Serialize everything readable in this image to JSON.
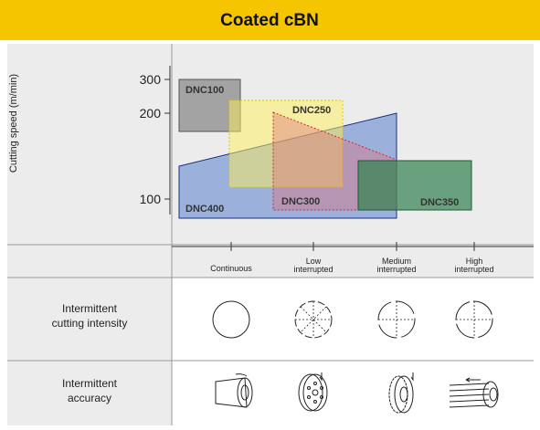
{
  "header": {
    "title": "Coated cBN"
  },
  "speed_chart": {
    "axis_label": "Cutting speed (m/min)",
    "ticks": [
      "300",
      "200",
      "100"
    ],
    "regions": [
      "DNC100",
      "DNC250",
      "DNC300",
      "DNC400",
      "DNC350"
    ]
  },
  "interruption_axis": {
    "labels": [
      [
        "Continuous"
      ],
      [
        "Low",
        "interrupted"
      ],
      [
        "Medium",
        "interrupted"
      ],
      [
        "High",
        "interrupted"
      ]
    ]
  },
  "rows": [
    {
      "label": [
        "Intermittent",
        "cutting intensity"
      ]
    },
    {
      "label": [
        "Intermittent",
        "accuracy"
      ]
    }
  ]
}
